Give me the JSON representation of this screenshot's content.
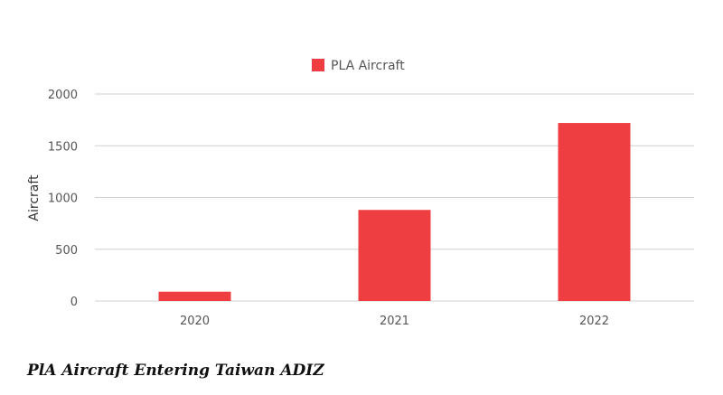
{
  "chart_data": {
    "type": "bar",
    "categories": [
      "2020",
      "2021",
      "2022"
    ],
    "series": [
      {
        "name": "PLA Aircraft",
        "values": [
          90,
          880,
          1720
        ],
        "color": "#ee3e42"
      }
    ],
    "xlabel": "",
    "ylabel": "Aircraft",
    "ylim": [
      0,
      2000
    ],
    "yticks": [
      0,
      500,
      1000,
      1500,
      2000
    ],
    "grid": true,
    "legend_position": "top-center"
  },
  "caption": "PlA Aircraft Entering Taiwan ADIZ"
}
